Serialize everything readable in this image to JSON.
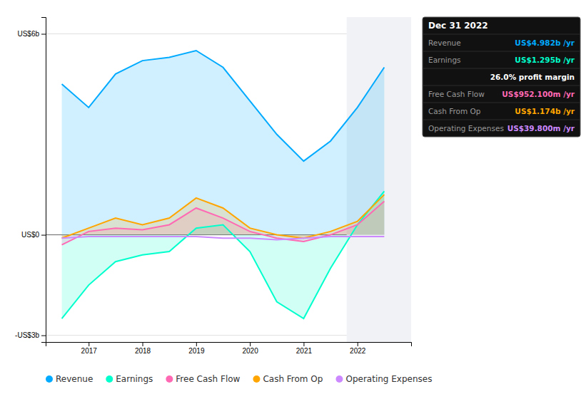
{
  "chart_data": {
    "type": "area",
    "title": "Dec 31 2022",
    "x": [
      2016.5,
      2017,
      2017.5,
      2018,
      2018.5,
      2019,
      2019.5,
      2020,
      2020.5,
      2021,
      2021.5,
      2022,
      2022.5
    ],
    "series": [
      {
        "name": "Revenue",
        "color": "#00aaff",
        "type": "area",
        "values": [
          4.5,
          3.8,
          4.8,
          5.2,
          5.3,
          5.5,
          5.0,
          4.0,
          3.0,
          2.2,
          2.8,
          3.8,
          5.0
        ]
      },
      {
        "name": "Earnings",
        "color": "#00ffcc",
        "type": "area",
        "values": [
          -2.5,
          -1.5,
          -0.8,
          -0.6,
          -0.5,
          0.2,
          0.3,
          -0.5,
          -2.0,
          -2.5,
          -1.0,
          0.3,
          1.3
        ]
      },
      {
        "name": "Free Cash Flow",
        "color": "#ff69b4",
        "type": "area",
        "values": [
          -0.3,
          0.1,
          0.2,
          0.15,
          0.3,
          0.8,
          0.5,
          0.1,
          -0.1,
          -0.2,
          0.0,
          0.3,
          1.0
        ]
      },
      {
        "name": "Cash From Op",
        "color": "#ffa500",
        "type": "area",
        "values": [
          -0.1,
          0.2,
          0.5,
          0.3,
          0.5,
          1.1,
          0.8,
          0.2,
          0.0,
          -0.1,
          0.1,
          0.4,
          1.2
        ]
      },
      {
        "name": "Operating Expenses",
        "color": "#cc88ff",
        "type": "line",
        "values": [
          -0.1,
          -0.05,
          -0.05,
          -0.05,
          -0.05,
          -0.05,
          -0.1,
          -0.1,
          -0.15,
          -0.1,
          -0.05,
          -0.05,
          -0.05
        ]
      }
    ],
    "xlim": [
      2016.2,
      2023.0
    ],
    "xticks": [
      2017,
      2018,
      2019,
      2020,
      2021,
      2022
    ],
    "ylim": [
      -3.2,
      6.5
    ],
    "yticks": [
      {
        "value": 6,
        "label": "US$6b"
      },
      {
        "value": 0,
        "label": "US$0"
      },
      {
        "value": -3,
        "label": "-US$3b"
      }
    ],
    "grid": true,
    "legend": "bottom",
    "highlight_x": [
      2021.8,
      2023.0
    ],
    "annotations": [
      {
        "label": "Revenue",
        "text": "US$4.982b /yr",
        "color": "#00aaff"
      },
      {
        "label": "Earnings",
        "text": "US$1.295b /yr",
        "color": "#00ffcc"
      },
      {
        "text": "26.0% profit margin",
        "color": "#ffffff"
      },
      {
        "label": "Free Cash Flow",
        "text": "US$952.100m /yr",
        "color": "#ff69b4"
      },
      {
        "label": "Cash From Op",
        "text": "US$1.174b /yr",
        "color": "#ffa500"
      },
      {
        "label": "Operating Expenses",
        "text": "US$39.800m /yr",
        "color": "#cc88ff"
      }
    ]
  }
}
